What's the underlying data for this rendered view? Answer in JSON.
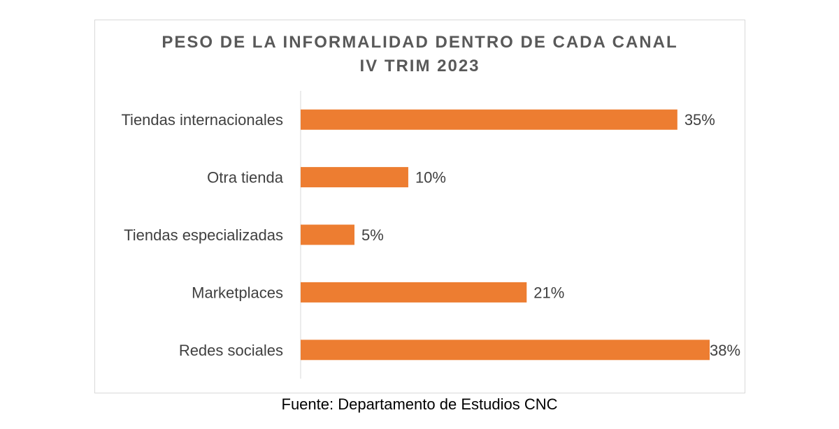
{
  "chart_data": {
    "type": "bar",
    "orientation": "horizontal",
    "title_line1": "PESO DE LA INFORMALIDAD DENTRO DE CADA CANAL",
    "title_line2": "IV TRIM 2023",
    "categories": [
      "Tiendas internacionales",
      "Otra tienda",
      "Tiendas especializadas",
      "Marketplaces",
      "Redes sociales"
    ],
    "values": [
      35,
      10,
      5,
      21,
      38
    ],
    "value_labels": [
      "35%",
      "10%",
      "5%",
      "21%",
      "38%"
    ],
    "unit": "%",
    "xlim": [
      0,
      38
    ],
    "grid": false,
    "legend": "none",
    "bar_color": "#ED7D31"
  },
  "source": "Fuente: Departamento de Estudios CNC"
}
